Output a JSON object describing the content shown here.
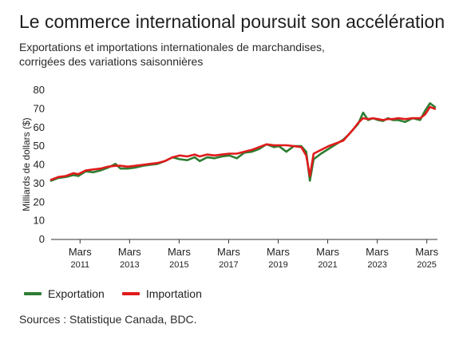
{
  "header": {
    "title": "Le commerce international poursuit son accélération",
    "subtitle_line1": "Exportations et importations internationales de marchandises,",
    "subtitle_line2": "corrigées des variations saisonnières"
  },
  "footer": {
    "source": "Sources : Statistique Canada, BDC."
  },
  "chart_data": {
    "type": "line",
    "ylabel": "Milliards de dollars ($)",
    "ylim": [
      0,
      80
    ],
    "yticks": [
      0,
      10,
      20,
      30,
      40,
      50,
      60,
      70,
      80
    ],
    "xlim": [
      2010.0,
      2025.6
    ],
    "x_ticks": [
      {
        "x": 2011.17,
        "label": "Mars",
        "year": "2011"
      },
      {
        "x": 2013.17,
        "label": "Mars",
        "year": "2013"
      },
      {
        "x": 2015.17,
        "label": "Mars",
        "year": "2015"
      },
      {
        "x": 2017.17,
        "label": "Mars",
        "year": "2017"
      },
      {
        "x": 2019.17,
        "label": "Mars",
        "year": "2019"
      },
      {
        "x": 2021.17,
        "label": "Mars",
        "year": "2021"
      },
      {
        "x": 2023.17,
        "label": "Mars",
        "year": "2023"
      },
      {
        "x": 2025.17,
        "label": "Mars",
        "year": "2025"
      }
    ],
    "grid": false,
    "legend": "bottom-left",
    "series": [
      {
        "name": "Exportation",
        "color": "#2e7d32",
        "points": [
          [
            2010.0,
            31.5
          ],
          [
            2010.3,
            33
          ],
          [
            2010.6,
            33.5
          ],
          [
            2010.9,
            34.5
          ],
          [
            2011.1,
            34
          ],
          [
            2011.4,
            36.5
          ],
          [
            2011.7,
            36
          ],
          [
            2012.0,
            37
          ],
          [
            2012.3,
            38.5
          ],
          [
            2012.6,
            40.5
          ],
          [
            2012.8,
            38
          ],
          [
            2013.1,
            38
          ],
          [
            2013.4,
            38.5
          ],
          [
            2013.7,
            39.5
          ],
          [
            2014.0,
            40
          ],
          [
            2014.3,
            40.5
          ],
          [
            2014.6,
            42
          ],
          [
            2014.9,
            44
          ],
          [
            2015.2,
            43
          ],
          [
            2015.5,
            42.5
          ],
          [
            2015.8,
            44
          ],
          [
            2016.0,
            42
          ],
          [
            2016.3,
            44
          ],
          [
            2016.6,
            43.5
          ],
          [
            2016.9,
            44.5
          ],
          [
            2017.2,
            45
          ],
          [
            2017.5,
            43.5
          ],
          [
            2017.8,
            46.5
          ],
          [
            2018.1,
            47
          ],
          [
            2018.4,
            48.5
          ],
          [
            2018.7,
            51
          ],
          [
            2019.0,
            49.5
          ],
          [
            2019.2,
            50
          ],
          [
            2019.5,
            47
          ],
          [
            2019.8,
            50
          ],
          [
            2020.1,
            50
          ],
          [
            2020.3,
            47
          ],
          [
            2020.45,
            31.5
          ],
          [
            2020.6,
            43
          ],
          [
            2020.9,
            46
          ],
          [
            2021.2,
            48.5
          ],
          [
            2021.5,
            51
          ],
          [
            2021.8,
            53.5
          ],
          [
            2022.0,
            56
          ],
          [
            2022.2,
            59
          ],
          [
            2022.4,
            62
          ],
          [
            2022.6,
            68
          ],
          [
            2022.8,
            64
          ],
          [
            2023.0,
            65
          ],
          [
            2023.2,
            64
          ],
          [
            2023.4,
            63.5
          ],
          [
            2023.6,
            65
          ],
          [
            2023.8,
            64
          ],
          [
            2024.0,
            64
          ],
          [
            2024.3,
            63
          ],
          [
            2024.6,
            65
          ],
          [
            2024.9,
            64
          ],
          [
            2025.1,
            69
          ],
          [
            2025.3,
            73
          ],
          [
            2025.5,
            71
          ]
        ]
      },
      {
        "name": "Importation",
        "color": "#e01b1b",
        "points": [
          [
            2010.0,
            32
          ],
          [
            2010.3,
            33.5
          ],
          [
            2010.6,
            34
          ],
          [
            2010.9,
            35.5
          ],
          [
            2011.1,
            35
          ],
          [
            2011.4,
            37
          ],
          [
            2011.7,
            37.5
          ],
          [
            2012.0,
            38
          ],
          [
            2012.3,
            39
          ],
          [
            2012.6,
            39.5
          ],
          [
            2012.8,
            39.5
          ],
          [
            2013.1,
            39
          ],
          [
            2013.4,
            39.5
          ],
          [
            2013.7,
            40
          ],
          [
            2014.0,
            40.5
          ],
          [
            2014.3,
            41
          ],
          [
            2014.6,
            42
          ],
          [
            2014.9,
            44
          ],
          [
            2015.2,
            45
          ],
          [
            2015.5,
            44.5
          ],
          [
            2015.8,
            45.5
          ],
          [
            2016.0,
            44.5
          ],
          [
            2016.3,
            45.5
          ],
          [
            2016.6,
            45
          ],
          [
            2016.9,
            45.5
          ],
          [
            2017.2,
            46
          ],
          [
            2017.5,
            46
          ],
          [
            2017.8,
            47
          ],
          [
            2018.1,
            48
          ],
          [
            2018.4,
            49.5
          ],
          [
            2018.7,
            51
          ],
          [
            2019.0,
            50.5
          ],
          [
            2019.2,
            50.5
          ],
          [
            2019.5,
            50.5
          ],
          [
            2019.8,
            50
          ],
          [
            2020.1,
            49.5
          ],
          [
            2020.3,
            45
          ],
          [
            2020.45,
            34
          ],
          [
            2020.6,
            46
          ],
          [
            2020.9,
            48
          ],
          [
            2021.2,
            50
          ],
          [
            2021.5,
            51.5
          ],
          [
            2021.8,
            53
          ],
          [
            2022.0,
            56
          ],
          [
            2022.2,
            59
          ],
          [
            2022.4,
            62.5
          ],
          [
            2022.6,
            65
          ],
          [
            2022.8,
            64.5
          ],
          [
            2023.0,
            65
          ],
          [
            2023.2,
            64.5
          ],
          [
            2023.4,
            64
          ],
          [
            2023.6,
            64.5
          ],
          [
            2023.8,
            64.5
          ],
          [
            2024.0,
            65
          ],
          [
            2024.3,
            64.5
          ],
          [
            2024.6,
            65
          ],
          [
            2024.9,
            65
          ],
          [
            2025.1,
            67
          ],
          [
            2025.3,
            71
          ],
          [
            2025.5,
            70
          ]
        ]
      }
    ]
  }
}
